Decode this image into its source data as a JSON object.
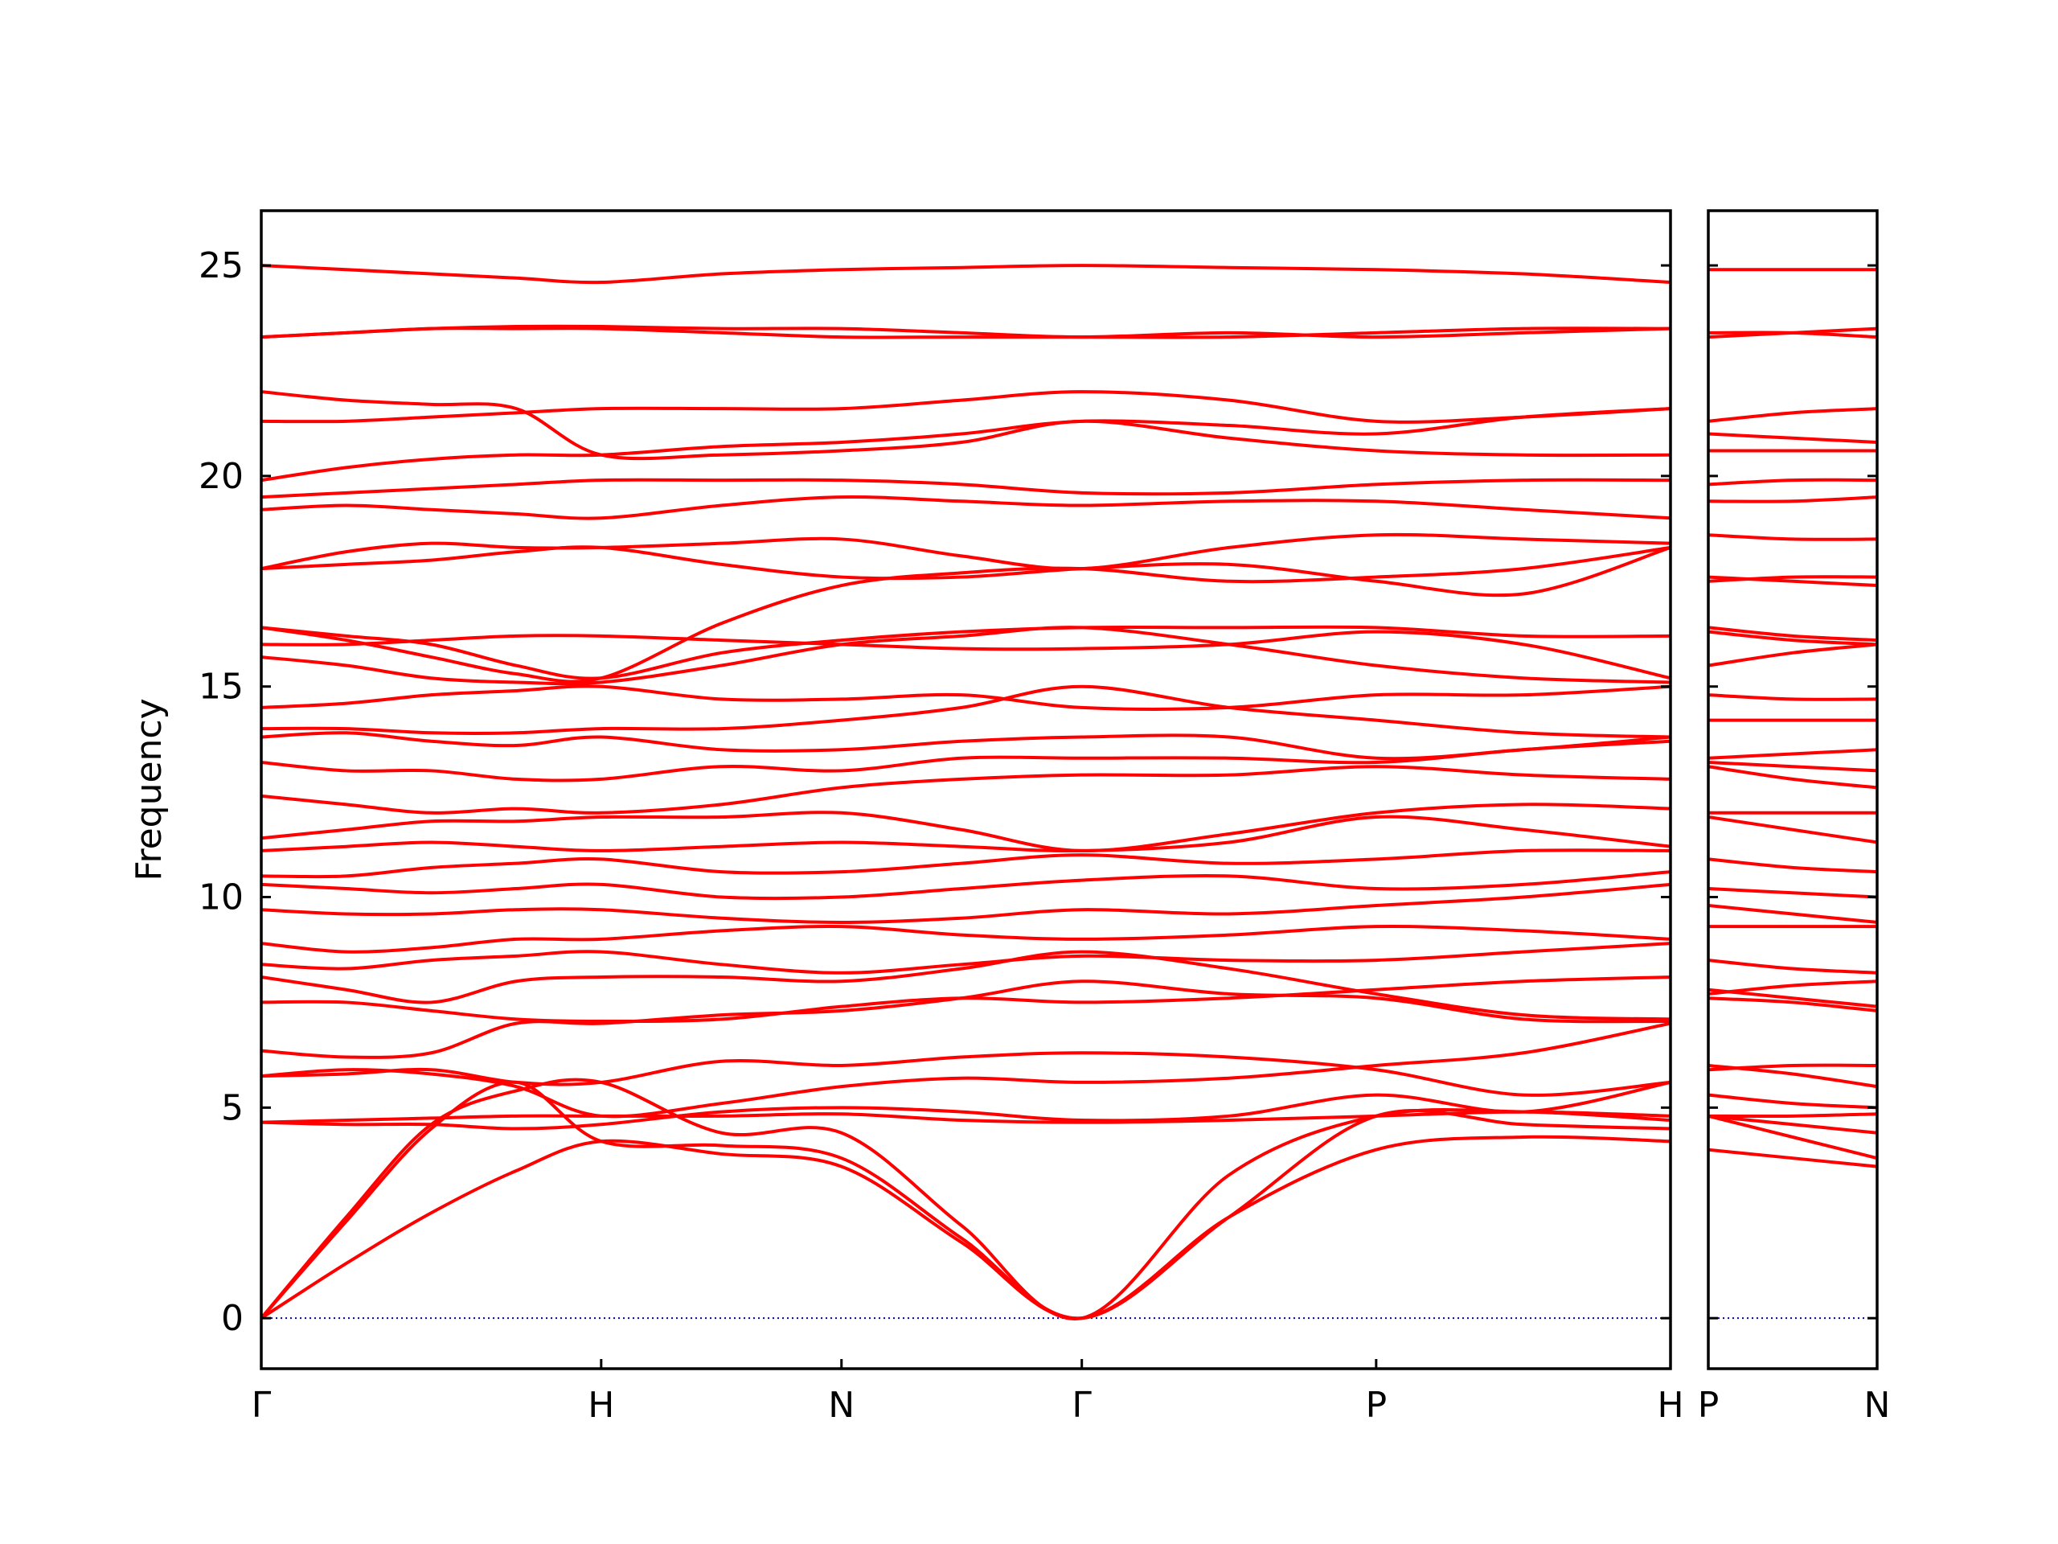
{
  "chart_data": [
    {
      "type": "line",
      "ylabel": "Frequency",
      "color": "#ff0000",
      "zero_line_color": "#0000cc",
      "show_ytick_labels": true,
      "xlim": [
        0,
        4.146
      ],
      "ylim": [
        -1.2,
        26.3
      ],
      "xticks": [
        {
          "value": 0,
          "label": "Γ"
        },
        {
          "value": 1,
          "label": "H"
        },
        {
          "value": 1.707,
          "label": "N"
        },
        {
          "value": 2.414,
          "label": "Γ"
        },
        {
          "value": 3.28,
          "label": "P"
        },
        {
          "value": 4.146,
          "label": "H"
        }
      ],
      "yticks": [
        0,
        5,
        10,
        15,
        20,
        25
      ],
      "x": [
        0,
        0.25,
        0.5,
        0.75,
        1,
        1.354,
        1.707,
        2.06,
        2.414,
        2.847,
        3.28,
        3.713,
        4.146
      ],
      "series": [
        {
          "values": [
            0,
            1.3,
            2.5,
            3.5,
            4.2,
            3.9,
            3.6,
            1.8,
            0,
            2.4,
            4.0,
            4.3,
            4.2
          ]
        },
        {
          "values": [
            0,
            2.3,
            4.5,
            5.6,
            4.2,
            4.1,
            3.8,
            1.9,
            0,
            2.4,
            4.8,
            4.6,
            4.5
          ]
        },
        {
          "values": [
            0,
            2.4,
            4.6,
            5.4,
            5.6,
            4.4,
            4.4,
            2.2,
            0,
            3.4,
            4.8,
            4.9,
            4.7
          ]
        },
        {
          "values": [
            4.65,
            4.7,
            4.75,
            4.8,
            4.8,
            4.8,
            4.85,
            4.7,
            4.65,
            4.7,
            4.8,
            4.9,
            4.8
          ]
        },
        {
          "values": [
            4.65,
            4.6,
            4.6,
            4.5,
            4.6,
            4.9,
            5.0,
            4.9,
            4.7,
            4.8,
            5.3,
            4.9,
            5.6
          ]
        },
        {
          "values": [
            5.75,
            5.8,
            5.9,
            5.6,
            5.6,
            6.1,
            6.0,
            6.2,
            6.3,
            6.2,
            5.9,
            5.3,
            5.6
          ]
        },
        {
          "values": [
            5.75,
            5.9,
            5.8,
            5.5,
            4.8,
            5.1,
            5.5,
            5.7,
            5.6,
            5.7,
            6.0,
            6.3,
            7.0
          ]
        },
        {
          "values": [
            6.35,
            6.2,
            6.3,
            7.0,
            7.0,
            7.2,
            7.3,
            7.6,
            8.0,
            7.7,
            7.6,
            7.1,
            7.05
          ]
        },
        {
          "values": [
            7.5,
            7.5,
            7.3,
            7.1,
            7.05,
            7.1,
            7.4,
            7.6,
            7.5,
            7.6,
            7.8,
            8.0,
            8.1
          ]
        },
        {
          "values": [
            8.1,
            7.8,
            7.5,
            8.0,
            8.1,
            8.1,
            8.0,
            8.3,
            8.7,
            8.3,
            7.7,
            7.2,
            7.1
          ]
        },
        {
          "values": [
            8.4,
            8.3,
            8.5,
            8.6,
            8.7,
            8.4,
            8.2,
            8.4,
            8.6,
            8.5,
            8.5,
            8.7,
            8.9
          ]
        },
        {
          "values": [
            8.9,
            8.7,
            8.8,
            9.0,
            9.0,
            9.2,
            9.3,
            9.1,
            9.0,
            9.1,
            9.3,
            9.2,
            9.0
          ]
        },
        {
          "values": [
            9.7,
            9.6,
            9.6,
            9.7,
            9.7,
            9.5,
            9.4,
            9.5,
            9.7,
            9.6,
            9.8,
            10.0,
            10.3
          ]
        },
        {
          "values": [
            10.3,
            10.2,
            10.1,
            10.2,
            10.3,
            10.0,
            10.0,
            10.2,
            10.4,
            10.5,
            10.2,
            10.3,
            10.6
          ]
        },
        {
          "values": [
            10.5,
            10.5,
            10.7,
            10.8,
            10.9,
            10.6,
            10.6,
            10.8,
            11.0,
            10.8,
            10.9,
            11.1,
            11.1
          ]
        },
        {
          "values": [
            11.1,
            11.2,
            11.3,
            11.2,
            11.1,
            11.2,
            11.3,
            11.2,
            11.1,
            11.3,
            11.9,
            11.6,
            11.2
          ]
        },
        {
          "values": [
            11.4,
            11.6,
            11.8,
            11.8,
            11.9,
            11.9,
            12.0,
            11.6,
            11.1,
            11.5,
            12.0,
            12.2,
            12.1
          ]
        },
        {
          "values": [
            12.4,
            12.2,
            12.0,
            12.1,
            12.0,
            12.2,
            12.6,
            12.8,
            12.9,
            12.9,
            13.1,
            12.9,
            12.8
          ]
        },
        {
          "values": [
            13.2,
            13.0,
            13.0,
            12.8,
            12.8,
            13.1,
            13.0,
            13.3,
            13.3,
            13.3,
            13.2,
            13.5,
            13.7
          ]
        },
        {
          "values": [
            13.8,
            13.9,
            13.7,
            13.6,
            13.8,
            13.5,
            13.5,
            13.7,
            13.8,
            13.8,
            13.3,
            13.5,
            13.8
          ]
        },
        {
          "values": [
            14.0,
            14.0,
            13.9,
            13.9,
            14.0,
            14.0,
            14.2,
            14.5,
            15.0,
            14.5,
            14.2,
            13.9,
            13.8
          ]
        },
        {
          "values": [
            14.5,
            14.6,
            14.8,
            14.9,
            15.0,
            14.7,
            14.7,
            14.8,
            14.5,
            14.5,
            14.8,
            14.8,
            15.0
          ]
        },
        {
          "values": [
            15.7,
            15.5,
            15.2,
            15.1,
            15.1,
            15.5,
            16.0,
            16.2,
            16.4,
            16.0,
            15.5,
            15.2,
            15.1
          ]
        },
        {
          "values": [
            16.0,
            16.0,
            16.1,
            16.2,
            16.2,
            16.1,
            16.0,
            15.9,
            15.9,
            16.0,
            16.3,
            16.0,
            15.2
          ]
        },
        {
          "values": [
            16.4,
            16.2,
            16.0,
            15.5,
            15.2,
            15.8,
            16.1,
            16.3,
            16.4,
            16.4,
            16.4,
            16.2,
            16.2
          ]
        },
        {
          "values": [
            16.4,
            16.1,
            15.7,
            15.3,
            15.2,
            16.5,
            17.4,
            17.7,
            17.8,
            17.5,
            17.6,
            17.8,
            18.3
          ]
        },
        {
          "values": [
            17.8,
            17.9,
            18.0,
            18.2,
            18.3,
            17.9,
            17.6,
            17.6,
            17.8,
            17.9,
            17.5,
            17.2,
            18.3
          ]
        },
        {
          "values": [
            17.8,
            18.2,
            18.4,
            18.3,
            18.3,
            18.4,
            18.5,
            18.1,
            17.8,
            18.3,
            18.6,
            18.5,
            18.4
          ]
        },
        {
          "values": [
            19.2,
            19.3,
            19.2,
            19.1,
            19.0,
            19.3,
            19.5,
            19.4,
            19.3,
            19.4,
            19.4,
            19.2,
            19.0
          ]
        },
        {
          "values": [
            19.5,
            19.6,
            19.7,
            19.8,
            19.9,
            19.9,
            19.9,
            19.8,
            19.6,
            19.6,
            19.8,
            19.9,
            19.9
          ]
        },
        {
          "values": [
            19.9,
            20.2,
            20.4,
            20.5,
            20.5,
            20.7,
            20.8,
            21.0,
            21.3,
            21.2,
            21.0,
            21.4,
            21.6
          ]
        },
        {
          "values": [
            21.3,
            21.3,
            21.4,
            21.5,
            21.6,
            21.6,
            21.6,
            21.8,
            22.0,
            21.8,
            21.3,
            21.4,
            21.6
          ]
        },
        {
          "values": [
            22.0,
            21.8,
            21.7,
            21.6,
            20.5,
            20.5,
            20.6,
            20.8,
            21.3,
            20.9,
            20.6,
            20.5,
            20.5
          ]
        },
        {
          "values": [
            23.3,
            23.4,
            23.5,
            23.5,
            23.5,
            23.4,
            23.3,
            23.3,
            23.3,
            23.3,
            23.4,
            23.5,
            23.5
          ]
        },
        {
          "values": [
            23.3,
            23.4,
            23.5,
            23.55,
            23.55,
            23.5,
            23.5,
            23.4,
            23.3,
            23.4,
            23.3,
            23.4,
            23.5
          ]
        },
        {
          "values": [
            25.0,
            24.9,
            24.8,
            24.7,
            24.6,
            24.8,
            24.9,
            24.95,
            25.0,
            24.95,
            24.9,
            24.8,
            24.6
          ]
        }
      ]
    },
    {
      "type": "line",
      "color": "#ff0000",
      "zero_line_color": "#0000cc",
      "show_ytick_labels": false,
      "xlim": [
        0,
        0.5
      ],
      "ylim": [
        -1.2,
        26.3
      ],
      "xticks": [
        {
          "value": 0,
          "label": "P"
        },
        {
          "value": 0.5,
          "label": "N"
        }
      ],
      "yticks": [
        0,
        5,
        10,
        15,
        20,
        25
      ],
      "x": [
        0,
        0.25,
        0.5
      ],
      "series": [
        {
          "values": [
            4.0,
            3.8,
            3.6
          ]
        },
        {
          "values": [
            4.8,
            4.3,
            3.8
          ]
        },
        {
          "values": [
            4.8,
            4.6,
            4.4
          ]
        },
        {
          "values": [
            4.8,
            4.8,
            4.85
          ]
        },
        {
          "values": [
            5.3,
            5.1,
            5.0
          ]
        },
        {
          "values": [
            5.9,
            6.0,
            6.0
          ]
        },
        {
          "values": [
            6.0,
            5.8,
            5.5
          ]
        },
        {
          "values": [
            7.6,
            7.5,
            7.3
          ]
        },
        {
          "values": [
            7.8,
            7.6,
            7.4
          ]
        },
        {
          "values": [
            7.7,
            7.9,
            8.0
          ]
        },
        {
          "values": [
            8.5,
            8.3,
            8.2
          ]
        },
        {
          "values": [
            9.3,
            9.3,
            9.3
          ]
        },
        {
          "values": [
            9.8,
            9.6,
            9.4
          ]
        },
        {
          "values": [
            10.2,
            10.1,
            10.0
          ]
        },
        {
          "values": [
            10.9,
            10.7,
            10.6
          ]
        },
        {
          "values": [
            11.9,
            11.6,
            11.3
          ]
        },
        {
          "values": [
            12.0,
            12.0,
            12.0
          ]
        },
        {
          "values": [
            13.1,
            12.8,
            12.6
          ]
        },
        {
          "values": [
            13.2,
            13.1,
            13.0
          ]
        },
        {
          "values": [
            13.3,
            13.4,
            13.5
          ]
        },
        {
          "values": [
            14.2,
            14.2,
            14.2
          ]
        },
        {
          "values": [
            14.8,
            14.7,
            14.7
          ]
        },
        {
          "values": [
            15.5,
            15.8,
            16.0
          ]
        },
        {
          "values": [
            16.3,
            16.1,
            16.0
          ]
        },
        {
          "values": [
            16.4,
            16.2,
            16.1
          ]
        },
        {
          "values": [
            17.6,
            17.5,
            17.4
          ]
        },
        {
          "values": [
            17.5,
            17.6,
            17.6
          ]
        },
        {
          "values": [
            18.6,
            18.5,
            18.5
          ]
        },
        {
          "values": [
            19.4,
            19.4,
            19.5
          ]
        },
        {
          "values": [
            19.8,
            19.9,
            19.9
          ]
        },
        {
          "values": [
            21.0,
            20.9,
            20.8
          ]
        },
        {
          "values": [
            21.3,
            21.5,
            21.6
          ]
        },
        {
          "values": [
            20.6,
            20.6,
            20.6
          ]
        },
        {
          "values": [
            23.4,
            23.4,
            23.3
          ]
        },
        {
          "values": [
            23.3,
            23.4,
            23.5
          ]
        },
        {
          "values": [
            24.9,
            24.9,
            24.9
          ]
        }
      ]
    }
  ]
}
